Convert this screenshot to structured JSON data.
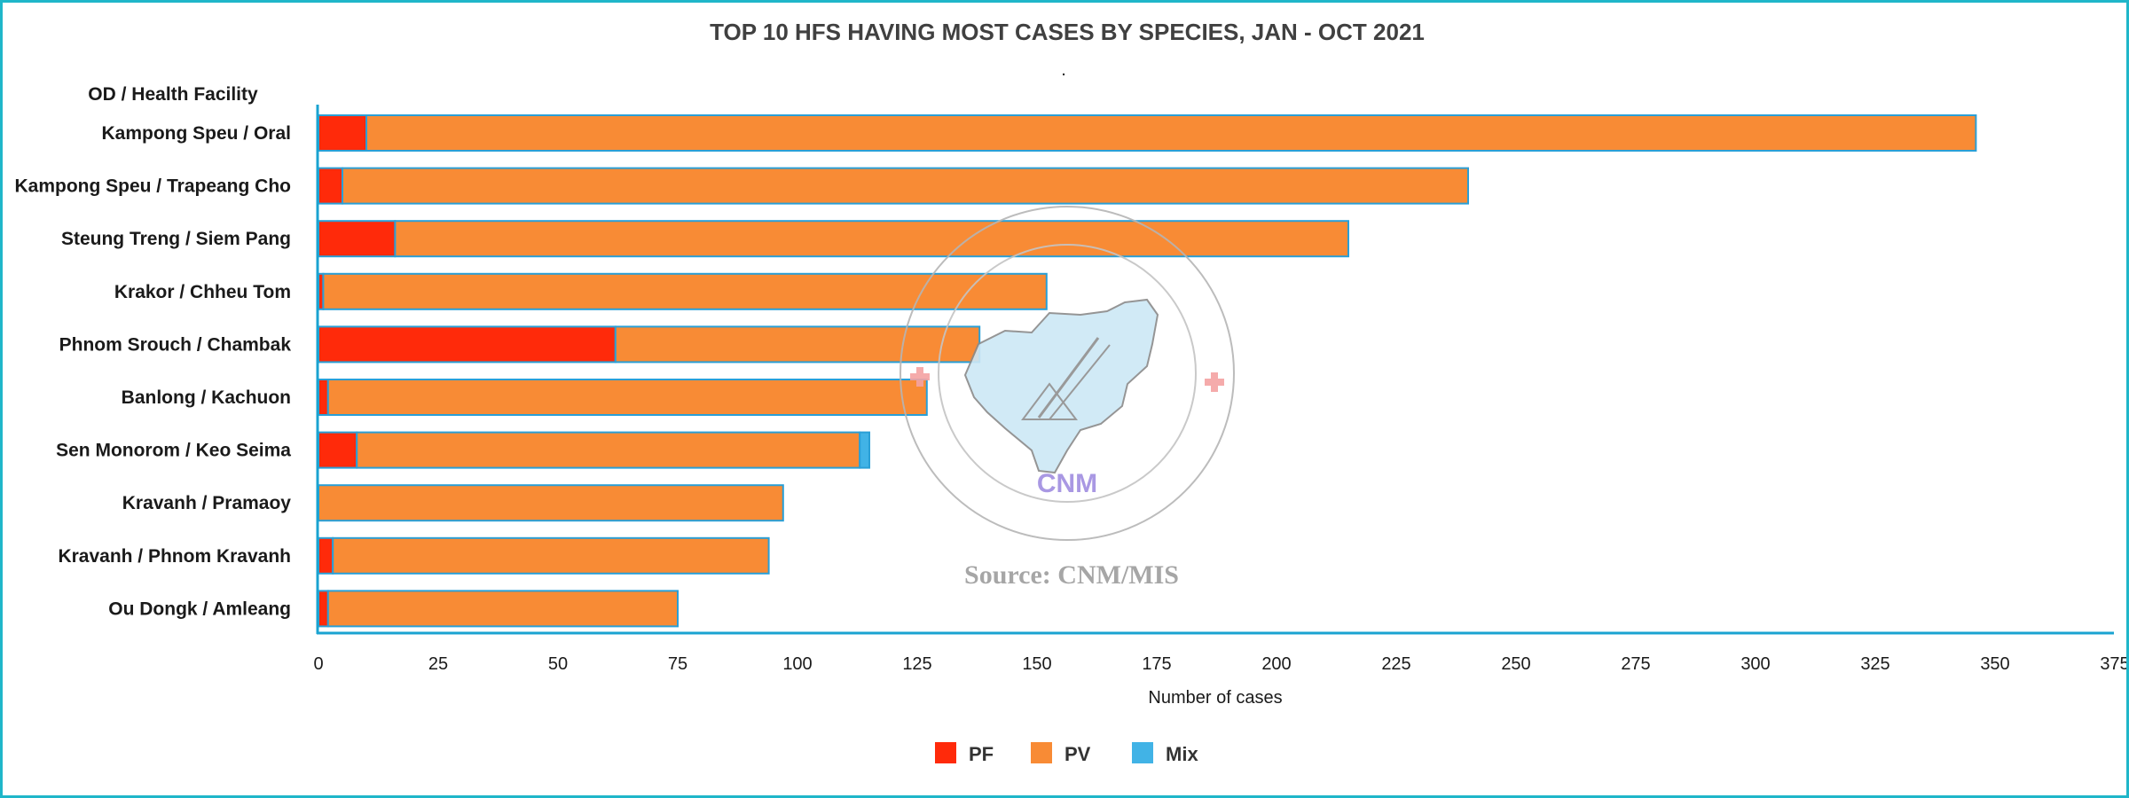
{
  "chart_data": {
    "type": "bar",
    "orientation": "horizontal",
    "stacked": true,
    "title": "TOP 10 HFS HAVING MOST CASES BY SPECIES, JAN - OCT 2021",
    "subtitle": ".",
    "ylabel": "OD / Health Facility",
    "xlabel": "Number of cases",
    "xlim": [
      0,
      375
    ],
    "xticks": [
      0,
      25,
      50,
      75,
      100,
      125,
      150,
      175,
      200,
      225,
      250,
      275,
      300,
      325,
      350,
      375
    ],
    "grid": false,
    "legend_position": "bottom",
    "categories": [
      "Kampong Speu / Oral",
      "Kampong Speu / Trapeang Cho",
      "Steung Treng / Siem Pang",
      "Krakor / Chheu Tom",
      "Phnom Srouch / Chambak",
      "Banlong / Kachuon",
      "Sen Monorom / Keo Seima",
      "Kravanh / Pramaoy",
      "Kravanh / Phnom Kravanh",
      "Ou Dongk / Amleang"
    ],
    "series": [
      {
        "name": "PF",
        "color": "#ff2a0a",
        "values": [
          10,
          5,
          16,
          1,
          62,
          2,
          8,
          0,
          3,
          2
        ]
      },
      {
        "name": "PV",
        "color": "#f88b35",
        "values": [
          336,
          235,
          199,
          151,
          76,
          125,
          105,
          97,
          91,
          73
        ]
      },
      {
        "name": "Mix",
        "color": "#41b3e6",
        "values": [
          0,
          0,
          0,
          0,
          0,
          0,
          2,
          0,
          0,
          0
        ]
      }
    ]
  },
  "watermark": {
    "source_text": "Source: CNM/MIS",
    "logo_text": "CNM"
  }
}
